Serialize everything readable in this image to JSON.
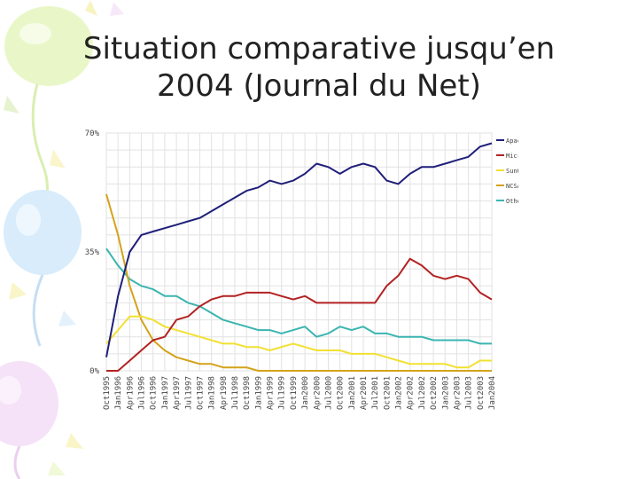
{
  "slide": {
    "title_line1": "Situation comparative jusqu’en",
    "title_line2": "2004 (Journal du Net)"
  },
  "colors": {
    "Apache": "#1f1f7a",
    "Microsoft": "#b22222",
    "SunONE": "#f2e032",
    "NCSA": "#d4a31a",
    "Other": "#3ab5b0"
  },
  "chart_data": {
    "type": "line",
    "ylim": [
      0,
      70
    ],
    "y_ticks": [
      0,
      35,
      70
    ],
    "y_tick_labels": [
      "0%",
      "35%",
      "70%"
    ],
    "grid": true,
    "legend_position": "right",
    "categories": [
      "Oct1995",
      "Jan1996",
      "Apr1996",
      "Jul1996",
      "Oct1996",
      "Jan1997",
      "Apr1997",
      "Jul1997",
      "Oct1997",
      "Jan1998",
      "Apr1998",
      "Jul1998",
      "Oct1998",
      "Jan1999",
      "Apr1999",
      "Jul1999",
      "Oct1999",
      "Jan2000",
      "Apr2000",
      "Jul2000",
      "Oct2000",
      "Jan2001",
      "Apr2001",
      "Jul2001",
      "Oct2001",
      "Jan2002",
      "Apr2002",
      "Jul2002",
      "Oct2002",
      "Jan2003",
      "Apr2003",
      "Jul2003",
      "Oct2003",
      "Jan2004"
    ],
    "series": [
      {
        "name": "Apache",
        "values": [
          4,
          22,
          35,
          40,
          41,
          42,
          43,
          44,
          45,
          47,
          49,
          51,
          53,
          54,
          56,
          55,
          56,
          58,
          61,
          60,
          58,
          60,
          61,
          60,
          56,
          55,
          58,
          60,
          60,
          61,
          62,
          63,
          66,
          67
        ]
      },
      {
        "name": "Microsoft",
        "values": [
          0,
          0,
          3,
          6,
          9,
          10,
          15,
          16,
          19,
          21,
          22,
          22,
          23,
          23,
          23,
          22,
          21,
          22,
          20,
          20,
          20,
          20,
          20,
          20,
          25,
          28,
          33,
          31,
          28,
          27,
          28,
          27,
          23,
          21
        ]
      },
      {
        "name": "SunONE",
        "values": [
          8,
          12,
          16,
          16,
          15,
          13,
          12,
          11,
          10,
          9,
          8,
          8,
          7,
          7,
          6,
          7,
          8,
          7,
          6,
          6,
          6,
          5,
          5,
          5,
          4,
          3,
          2,
          2,
          2,
          2,
          1,
          1,
          3,
          3
        ]
      },
      {
        "name": "NCSA",
        "values": [
          52,
          40,
          25,
          15,
          9,
          6,
          4,
          3,
          2,
          2,
          1,
          1,
          1,
          0,
          0,
          0,
          0,
          0,
          0,
          0,
          0,
          0,
          0,
          0,
          0,
          0,
          0,
          0,
          0,
          0,
          0,
          0,
          0,
          0
        ]
      },
      {
        "name": "Other",
        "values": [
          36,
          31,
          27,
          25,
          24,
          22,
          22,
          20,
          19,
          17,
          15,
          14,
          13,
          12,
          12,
          11,
          12,
          13,
          10,
          11,
          13,
          12,
          13,
          11,
          11,
          10,
          10,
          10,
          9,
          9,
          9,
          9,
          8,
          8
        ]
      }
    ]
  }
}
